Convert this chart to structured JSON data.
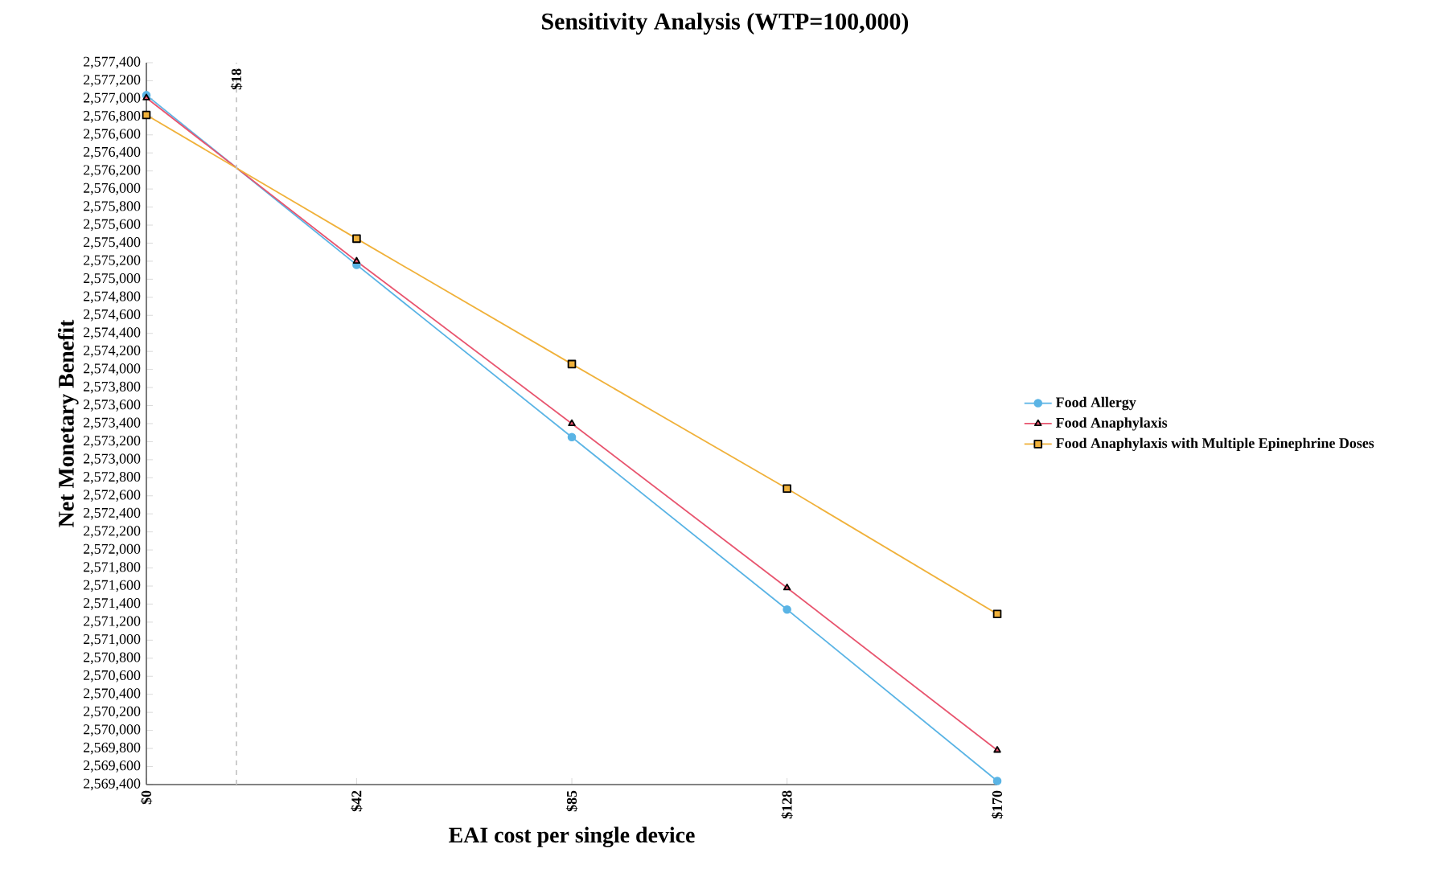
{
  "chart_data": {
    "type": "line",
    "title": "Sensitivity Analysis (WTP=100,000)",
    "xlabel": "EAI cost per single device",
    "ylabel": "Net Monetary Benefit",
    "x": [
      0,
      42,
      85,
      128,
      170
    ],
    "series": [
      {
        "name": "Food Allergy",
        "color": "#5ab4e5",
        "marker": "circle",
        "values": [
          2577040,
          2575160,
          2573250,
          2571340,
          2569440
        ]
      },
      {
        "name": "Food Anaphylaxis",
        "color": "#e8556f",
        "marker": "triangle",
        "values": [
          2577010,
          2575200,
          2573400,
          2571580,
          2569780
        ]
      },
      {
        "name": "Food Anaphylaxis with Multiple Epinephrine Doses",
        "color": "#f0b13a",
        "marker": "square",
        "values": [
          2576820,
          2575450,
          2574060,
          2572680,
          2571290
        ]
      }
    ],
    "xlim": [
      0,
      170
    ],
    "xticks": [
      {
        "value": 0,
        "label": "$0"
      },
      {
        "value": 42,
        "label": "$42"
      },
      {
        "value": 85,
        "label": "$85"
      },
      {
        "value": 128,
        "label": "$128"
      },
      {
        "value": 170,
        "label": "$170"
      }
    ],
    "ylim": [
      2569400,
      2577400
    ],
    "yticks": [
      {
        "value": 2569400,
        "label": "2,569,400"
      },
      {
        "value": 2569600,
        "label": "2,569,600"
      },
      {
        "value": 2569800,
        "label": "2,569,800"
      },
      {
        "value": 2570000,
        "label": "2,570,000"
      },
      {
        "value": 2570200,
        "label": "2,570,200"
      },
      {
        "value": 2570400,
        "label": "2,570,400"
      },
      {
        "value": 2570600,
        "label": "2,570,600"
      },
      {
        "value": 2570800,
        "label": "2,570,800"
      },
      {
        "value": 2571000,
        "label": "2,571,000"
      },
      {
        "value": 2571200,
        "label": "2,571,200"
      },
      {
        "value": 2571400,
        "label": "2,571,400"
      },
      {
        "value": 2571600,
        "label": "2,571,600"
      },
      {
        "value": 2571800,
        "label": "2,571,800"
      },
      {
        "value": 2572000,
        "label": "2,572,000"
      },
      {
        "value": 2572200,
        "label": "2,572,200"
      },
      {
        "value": 2572400,
        "label": "2,572,400"
      },
      {
        "value": 2572600,
        "label": "2,572,600"
      },
      {
        "value": 2572800,
        "label": "2,572,800"
      },
      {
        "value": 2573000,
        "label": "2,573,000"
      },
      {
        "value": 2573200,
        "label": "2,573,200"
      },
      {
        "value": 2573400,
        "label": "2,573,400"
      },
      {
        "value": 2573600,
        "label": "2,573,600"
      },
      {
        "value": 2573800,
        "label": "2,573,800"
      },
      {
        "value": 2574000,
        "label": "2,574,000"
      },
      {
        "value": 2574200,
        "label": "2,574,200"
      },
      {
        "value": 2574400,
        "label": "2,574,400"
      },
      {
        "value": 2574600,
        "label": "2,574,600"
      },
      {
        "value": 2574800,
        "label": "2,574,800"
      },
      {
        "value": 2575000,
        "label": "2,575,000"
      },
      {
        "value": 2575200,
        "label": "2,575,200"
      },
      {
        "value": 2575400,
        "label": "2,575,400"
      },
      {
        "value": 2575600,
        "label": "2,575,600"
      },
      {
        "value": 2575800,
        "label": "2,575,800"
      },
      {
        "value": 2576000,
        "label": "2,576,000"
      },
      {
        "value": 2576200,
        "label": "2,576,200"
      },
      {
        "value": 2576400,
        "label": "2,576,400"
      },
      {
        "value": 2576600,
        "label": "2,576,600"
      },
      {
        "value": 2576800,
        "label": "2,576,800"
      },
      {
        "value": 2577000,
        "label": "2,577,000"
      },
      {
        "value": 2577200,
        "label": "2,577,200"
      },
      {
        "value": 2577400,
        "label": "2,577,400"
      }
    ],
    "ref_lines": [
      {
        "axis": "x",
        "value": 18,
        "label": "$18",
        "color": "#c8c8c8",
        "line_style": "dashed"
      }
    ],
    "grid": false,
    "legend": "right"
  }
}
